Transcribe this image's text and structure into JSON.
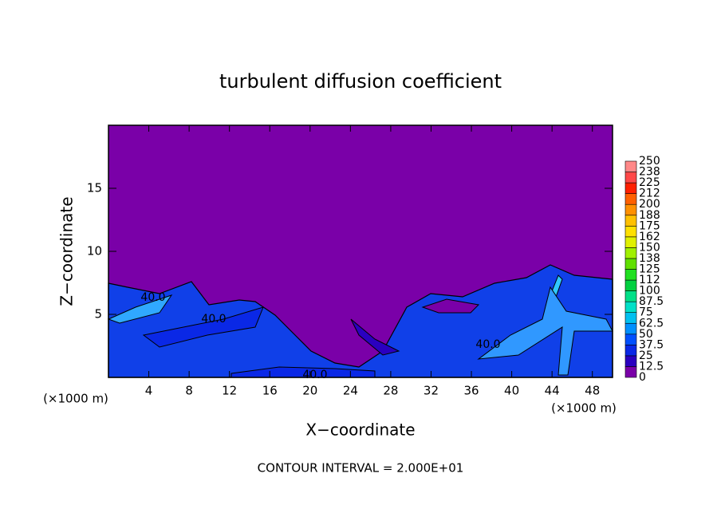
{
  "chart_data": {
    "type": "contour",
    "title": "turbulent diffusion coefficient",
    "x_label": "X−coordinate",
    "y_label": "Z−coordinate",
    "x_unit_left": "(×1000 m)",
    "x_unit_right": "(×1000 m)",
    "footer": "CONTOUR INTERVAL = 2.000E+01",
    "xlim": [
      0,
      50
    ],
    "xticks": [
      4,
      8,
      12,
      16,
      20,
      24,
      28,
      32,
      36,
      40,
      44,
      48
    ],
    "ylim": [
      0,
      20
    ],
    "yticks": [
      5,
      10,
      15
    ],
    "contour_labels": [
      "40.0",
      "40.0",
      "40.0",
      "40.0"
    ],
    "colorbar": {
      "levels": [
        0,
        12.5,
        25,
        37.5,
        50,
        62.5,
        75,
        87.5,
        100,
        {
          "value": 112.5,
          "label": "112"
        },
        125,
        {
          "value": 137.5,
          "label": "138"
        },
        150,
        {
          "value": 162.5,
          "label": "162"
        },
        175,
        {
          "value": 187.5,
          "label": "188"
        },
        200,
        {
          "value": 212.5,
          "label": "212"
        },
        225,
        {
          "value": 237.5,
          "label": "238"
        },
        250
      ],
      "colors": [
        "#7a00a8",
        "#2a00c0",
        "#0a28e6",
        "#0050ff",
        "#0090ff",
        "#00c0f0",
        "#00e0c8",
        "#00e088",
        "#00d040",
        "#20e020",
        "#60e000",
        "#a0f000",
        "#e0f000",
        "#ffe000",
        "#ffc000",
        "#ff9000",
        "#ff6000",
        "#ff2000",
        "#ff4848",
        "#ff8888"
      ]
    }
  }
}
